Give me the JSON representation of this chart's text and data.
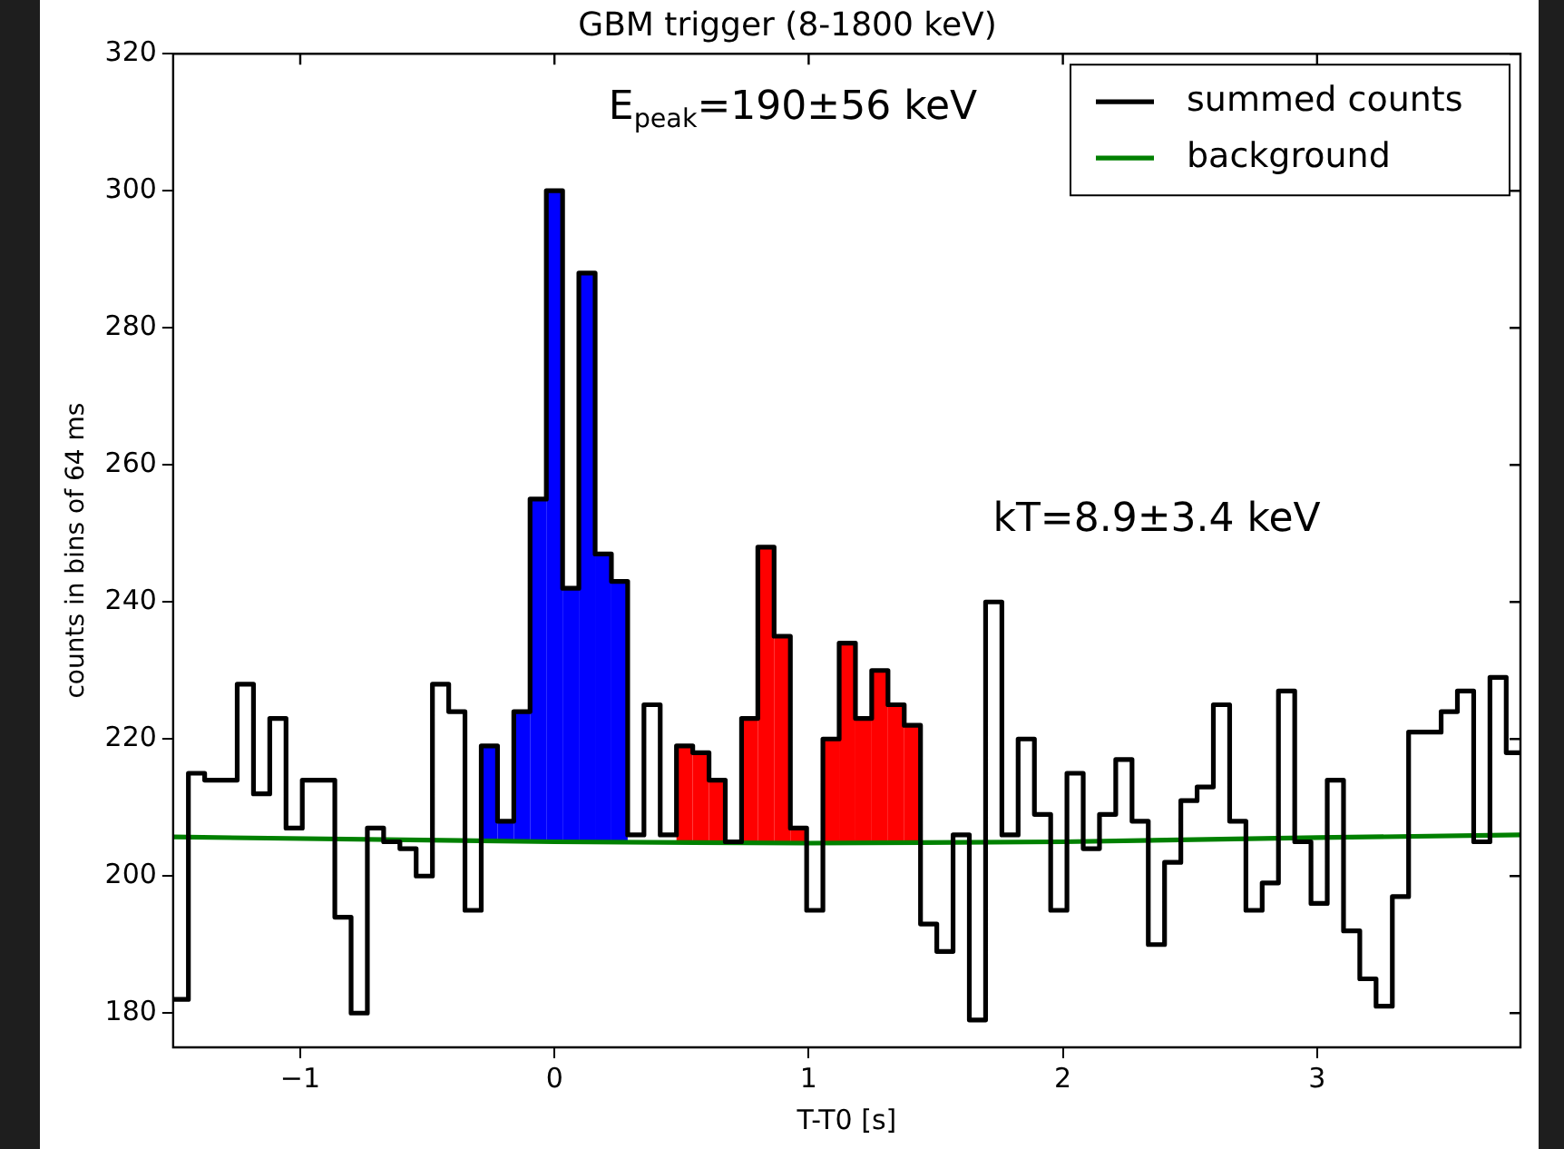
{
  "chart_data": {
    "type": "histogram",
    "title": "GBM trigger (8-1800 keV)",
    "xlabel": "T-T0 [s]",
    "ylabel": "counts in bins of 64 ms",
    "annotations": [
      "E$_{peak}$=190±56 keV",
      "kT=8.9±3.4 keV"
    ],
    "xlim": [
      -1.5,
      3.8
    ],
    "xticks": [
      -1,
      0,
      1,
      2,
      3
    ],
    "ylim": [
      175,
      320
    ],
    "yticks": [
      180,
      200,
      220,
      240,
      260,
      280,
      300,
      320
    ],
    "grid": false,
    "legend": "top right",
    "series": [
      {
        "name": "summed counts",
        "color": "#000000",
        "bins": [
          -1.5,
          -1.44,
          -1.376,
          -1.312,
          -1.248,
          -1.184,
          -1.12,
          -1.056,
          -0.992,
          -0.928,
          -0.864,
          -0.8,
          -0.736,
          -0.672,
          -0.608,
          -0.544,
          -0.48,
          -0.416,
          -0.352,
          -0.288,
          -0.224,
          -0.16,
          -0.096,
          -0.032,
          0.032,
          0.096,
          0.16,
          0.224,
          0.288,
          0.352,
          0.416,
          0.48,
          0.544,
          0.608,
          0.672,
          0.736,
          0.8,
          0.864,
          0.928,
          0.992,
          1.056,
          1.12,
          1.184,
          1.248,
          1.312,
          1.376,
          1.44,
          1.504,
          1.568,
          1.632,
          1.696,
          1.76,
          1.824,
          1.888,
          1.952,
          2.016,
          2.08,
          2.144,
          2.208,
          2.272,
          2.336,
          2.4,
          2.464,
          2.528,
          2.592,
          2.656,
          2.72,
          2.784,
          2.848,
          2.912,
          2.976,
          3.04,
          3.104,
          3.168,
          3.232,
          3.296,
          3.36,
          3.424,
          3.488,
          3.552,
          3.616,
          3.68,
          3.744,
          3.8
        ],
        "values": [
          182,
          215,
          214,
          214,
          228,
          212,
          223,
          207,
          214,
          214,
          194,
          180,
          207,
          205,
          204,
          200,
          228,
          224,
          195,
          219,
          208,
          224,
          255,
          300,
          242,
          288,
          247,
          243,
          206,
          225,
          206,
          219,
          218,
          214,
          205,
          223,
          248,
          235,
          207,
          195,
          220,
          234,
          223,
          230,
          225,
          222,
          193,
          189,
          206,
          179,
          240,
          206,
          220,
          209,
          195,
          215,
          204,
          209,
          217,
          208,
          190,
          202,
          211,
          213,
          225,
          208,
          195,
          199,
          227,
          205,
          196,
          214,
          192,
          185,
          181,
          197,
          221,
          221,
          224,
          227,
          205,
          229,
          218
        ]
      },
      {
        "type": "bar",
        "color": "#0000ff",
        "x": [
          -0.256,
          -0.192,
          -0.128,
          -0.064,
          0,
          0.064,
          0.128,
          0.192,
          0.256
        ],
        "base": [
          205,
          205,
          205,
          205,
          205,
          205,
          205,
          205,
          205
        ],
        "values": [
          14,
          3,
          19,
          50,
          95,
          37,
          83,
          42,
          38
        ]
      },
      {
        "type": "bar",
        "color": "#ff0000",
        "x": [
          0.512,
          0.576,
          0.64,
          0.768,
          0.832,
          0.896,
          0.96,
          1.088,
          1.152,
          1.216,
          1.28,
          1.344,
          1.408
        ],
        "base": [
          205,
          205,
          205,
          205,
          205,
          205,
          205,
          205,
          205,
          205,
          205,
          205,
          205
        ],
        "values": [
          14,
          13,
          9,
          18,
          43,
          30,
          2,
          15,
          29,
          18,
          25,
          20,
          17
        ]
      },
      {
        "type": "line",
        "name": "background",
        "color": "#008000",
        "x": [
          -1.5,
          0,
          1,
          2,
          3,
          3.8
        ],
        "values": [
          205.7,
          205.0,
          204.8,
          205.0,
          205.6,
          206.0
        ]
      }
    ]
  }
}
